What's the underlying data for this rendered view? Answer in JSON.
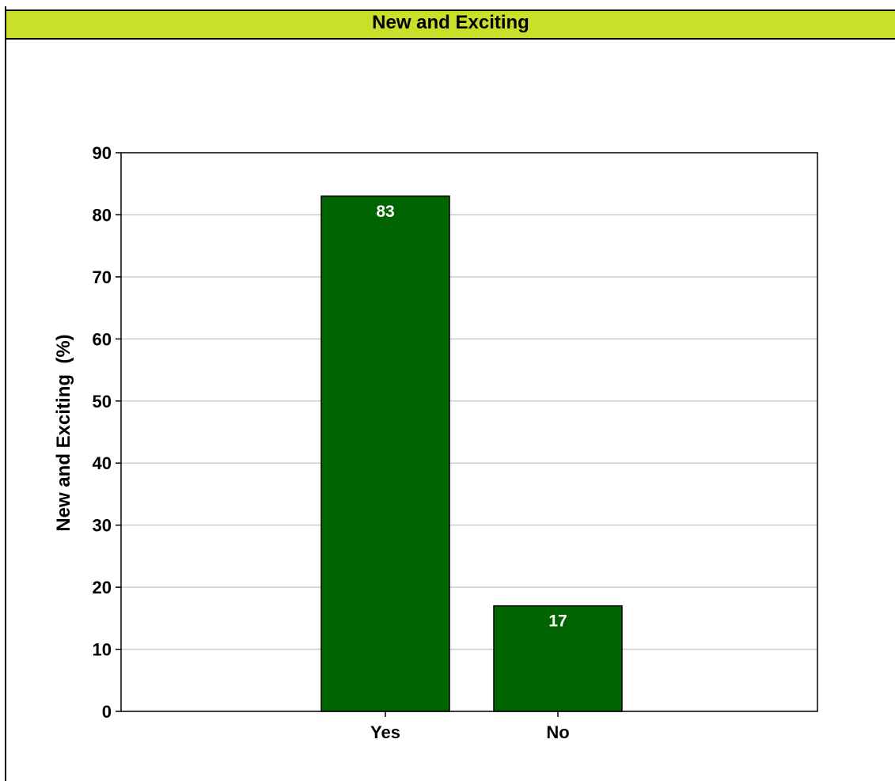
{
  "header": {
    "title": "New and Exciting"
  },
  "colors": {
    "title_bar": "#c9e02a",
    "bar_fill": "#006400",
    "bar_label": "#ffffff",
    "grid": "#cccccc",
    "axis": "#000000"
  },
  "chart_data": {
    "type": "bar",
    "categories": [
      "Yes",
      "No"
    ],
    "values": [
      83,
      17
    ],
    "data_labels": [
      "83",
      "17"
    ],
    "title": "",
    "xlabel": "",
    "ylabel": "New and Exciting  (%)",
    "ylim": [
      0,
      90
    ],
    "yticks": [
      0,
      10,
      20,
      30,
      40,
      50,
      60,
      70,
      80,
      90
    ],
    "grid": true
  }
}
